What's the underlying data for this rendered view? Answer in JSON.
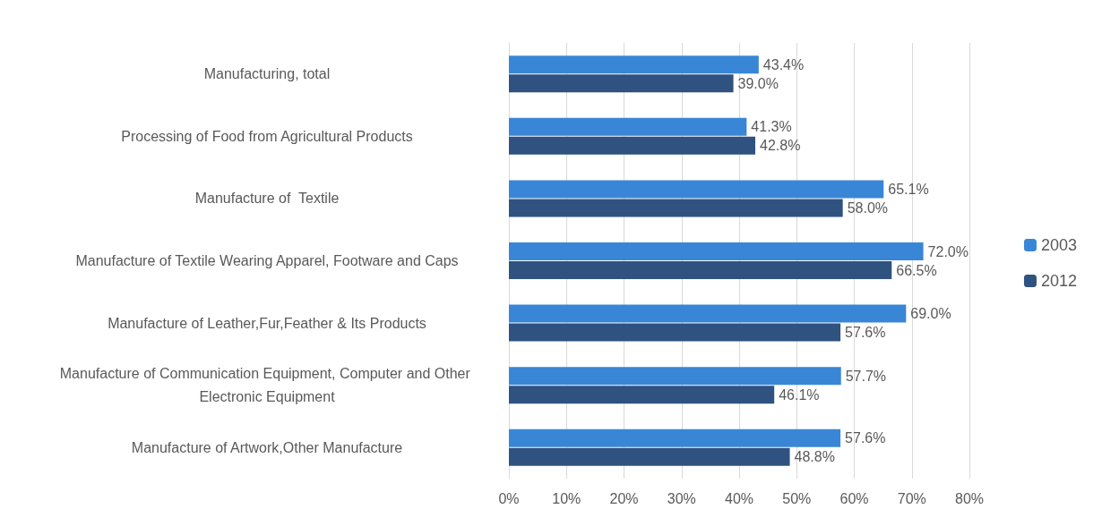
{
  "chart_data": {
    "type": "bar",
    "orientation": "horizontal",
    "categories": [
      "Manufacturing, total",
      "Processing of Food from Agricultural Products",
      "Manufacture of  Textile",
      "Manufacture of Textile Wearing Apparel, Footware and Caps",
      "Manufacture of Leather,Fur,Feather & Its Products",
      "Manufacture of Communication Equipment, Computer and Other Electronic Equipment",
      "Manufacture of Artwork,Other Manufacture"
    ],
    "series": [
      {
        "name": "2003",
        "color": "#3a86d6",
        "values": [
          43.4,
          41.3,
          65.1,
          72.0,
          69.0,
          57.7,
          57.6
        ],
        "value_labels": [
          "43.4%",
          "41.3%",
          "65.1%",
          "72.0%",
          "69.0%",
          "57.7%",
          "57.6%"
        ]
      },
      {
        "name": "2012",
        "color": "#2f5280",
        "values": [
          39.0,
          42.8,
          58.0,
          66.5,
          57.6,
          46.1,
          48.8
        ],
        "value_labels": [
          "39.0%",
          "42.8%",
          "58.0%",
          "66.5%",
          "57.6%",
          "46.1%",
          "48.8%"
        ]
      }
    ],
    "xlim": [
      0,
      80
    ],
    "xticks": [
      {
        "value": 0,
        "label": "0%"
      },
      {
        "value": 10,
        "label": "10%"
      },
      {
        "value": 20,
        "label": "20%"
      },
      {
        "value": 30,
        "label": "30%"
      },
      {
        "value": 40,
        "label": "40%"
      },
      {
        "value": 50,
        "label": "50%"
      },
      {
        "value": 60,
        "label": "60%"
      },
      {
        "value": 70,
        "label": "70%"
      },
      {
        "value": 80,
        "label": "80%"
      }
    ],
    "grid": "x",
    "legend": "right"
  }
}
